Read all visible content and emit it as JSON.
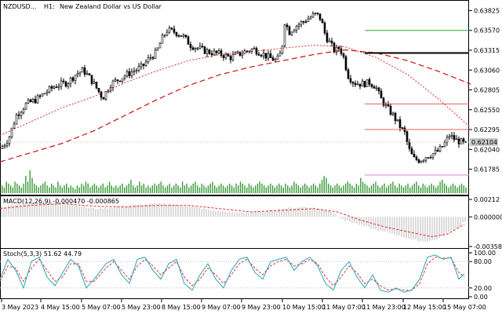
{
  "header": {
    "symbol": "NZDUSD...",
    "timeframe": "H1:",
    "description": "New Zealand Dollar vs US Dollar"
  },
  "current_price_label": "0.62104",
  "macd_label": "MACD(12,26,9) -0.000470 -0.000865",
  "stoch_label": "Stoch(5,3,3) 51.62 44.79",
  "colors": {
    "candle": "#000000",
    "ma_fast": "#e03030",
    "ma_slow": "#d01010",
    "volume": "#3a9a3a",
    "green_level": "#2fa82f",
    "black_level": "#000000",
    "red_level": "#e06060",
    "magenta_level": "#e080e0",
    "macd_hist": "#b8b8b8",
    "macd_signal": "#e03030",
    "stoch_main": "#26a6b8",
    "stoch_signal": "#e03030",
    "price_tag": "#c8c8c8"
  },
  "chart_data": [
    {
      "type": "candlestick",
      "title": "NZDUSD..., H1: New Zealand Dollar vs US Dollar",
      "ylim": [
        0.6168,
        0.6388
      ],
      "y_ticks": [
        "0.63825",
        "0.63570",
        "0.63315",
        "0.63060",
        "0.62805",
        "0.62550",
        "0.62295",
        "0.62040",
        "0.61785"
      ],
      "x_ticks": [
        "3 May 2023",
        "4 May 15:00",
        "5 May 07:00",
        "5 May 23:00",
        "8 May 15:00",
        "9 May 07:00",
        "9 May 23:00",
        "10 May 15:00",
        "11 May 07:00",
        "11 May 23:00",
        "12 May 15:00",
        "15 May 07:00"
      ],
      "path_points": [
        [
          0,
          0.6205
        ],
        [
          10,
          0.6218
        ],
        [
          20,
          0.6248
        ],
        [
          32,
          0.6262
        ],
        [
          45,
          0.6268
        ],
        [
          58,
          0.6278
        ],
        [
          70,
          0.6286
        ],
        [
          85,
          0.629
        ],
        [
          95,
          0.63
        ],
        [
          105,
          0.6306
        ],
        [
          115,
          0.6294
        ],
        [
          125,
          0.6278
        ],
        [
          130,
          0.627
        ],
        [
          140,
          0.6288
        ],
        [
          150,
          0.6294
        ],
        [
          160,
          0.63
        ],
        [
          170,
          0.6305
        ],
        [
          180,
          0.631
        ],
        [
          190,
          0.6322
        ],
        [
          198,
          0.6328
        ],
        [
          205,
          0.6345
        ],
        [
          212,
          0.6357
        ],
        [
          222,
          0.6355
        ],
        [
          232,
          0.635
        ],
        [
          242,
          0.6338
        ],
        [
          252,
          0.6334
        ],
        [
          262,
          0.633
        ],
        [
          272,
          0.6328
        ],
        [
          282,
          0.6326
        ],
        [
          292,
          0.6322
        ],
        [
          302,
          0.6326
        ],
        [
          312,
          0.633
        ],
        [
          322,
          0.6333
        ],
        [
          332,
          0.6328
        ],
        [
          342,
          0.6322
        ],
        [
          352,
          0.6318
        ],
        [
          358,
          0.633
        ],
        [
          362,
          0.6368
        ],
        [
          368,
          0.6355
        ],
        [
          375,
          0.6362
        ],
        [
          385,
          0.6368
        ],
        [
          395,
          0.6374
        ],
        [
          402,
          0.6378
        ],
        [
          408,
          0.6372
        ],
        [
          414,
          0.635
        ],
        [
          420,
          0.634
        ],
        [
          426,
          0.633
        ],
        [
          432,
          0.6335
        ],
        [
          438,
          0.632
        ],
        [
          442,
          0.63
        ],
        [
          450,
          0.629
        ],
        [
          460,
          0.6288
        ],
        [
          470,
          0.629
        ],
        [
          478,
          0.6285
        ],
        [
          484,
          0.627
        ],
        [
          492,
          0.6258
        ],
        [
          500,
          0.6248
        ],
        [
          508,
          0.6235
        ],
        [
          515,
          0.6225
        ],
        [
          520,
          0.6205
        ],
        [
          526,
          0.6192
        ],
        [
          534,
          0.619
        ],
        [
          542,
          0.6195
        ],
        [
          550,
          0.6198
        ],
        [
          558,
          0.6202
        ],
        [
          565,
          0.621
        ],
        [
          572,
          0.6222
        ],
        [
          580,
          0.6216
        ],
        [
          586,
          0.6214
        ],
        [
          592,
          0.621
        ]
      ],
      "ma_fast": [
        [
          0,
          0.6222
        ],
        [
          40,
          0.624
        ],
        [
          80,
          0.6258
        ],
        [
          120,
          0.6272
        ],
        [
          160,
          0.629
        ],
        [
          200,
          0.6305
        ],
        [
          240,
          0.6318
        ],
        [
          280,
          0.6326
        ],
        [
          320,
          0.633
        ],
        [
          360,
          0.6334
        ],
        [
          400,
          0.6338
        ],
        [
          440,
          0.6336
        ],
        [
          480,
          0.6322
        ],
        [
          520,
          0.63
        ],
        [
          560,
          0.6268
        ],
        [
          600,
          0.6232
        ]
      ],
      "ma_slow": [
        [
          0,
          0.6188
        ],
        [
          40,
          0.62
        ],
        [
          80,
          0.6212
        ],
        [
          120,
          0.6228
        ],
        [
          160,
          0.6248
        ],
        [
          200,
          0.6268
        ],
        [
          240,
          0.6286
        ],
        [
          280,
          0.63
        ],
        [
          320,
          0.631
        ],
        [
          360,
          0.6318
        ],
        [
          400,
          0.6326
        ],
        [
          440,
          0.6332
        ],
        [
          480,
          0.6328
        ],
        [
          520,
          0.6318
        ],
        [
          560,
          0.6304
        ],
        [
          600,
          0.6288
        ]
      ],
      "levels": [
        {
          "name": "green",
          "value": 0.6357,
          "x_start": 465,
          "x_end": 598,
          "color": "#2fa82f",
          "width": 1
        },
        {
          "name": "black",
          "value": 0.6328,
          "x_start": 465,
          "x_end": 598,
          "color": "#000000",
          "width": 2
        },
        {
          "name": "red-upper",
          "value": 0.62625,
          "x_start": 465,
          "x_end": 598,
          "color": "#e06060",
          "width": 1
        },
        {
          "name": "red-lower",
          "value": 0.62295,
          "x_start": 465,
          "x_end": 598,
          "color": "#e06060",
          "width": 1
        },
        {
          "name": "magenta",
          "value": 0.6171,
          "x_start": 465,
          "x_end": 598,
          "color": "#e080e0",
          "width": 1
        }
      ]
    },
    {
      "type": "bar",
      "title": "Volume",
      "values": [
        4,
        3,
        6,
        5,
        4,
        3,
        6,
        5,
        4,
        3,
        5,
        9,
        6,
        12,
        8,
        5,
        4,
        3,
        4,
        5,
        6,
        4,
        3,
        5,
        4,
        3,
        6,
        4,
        3,
        4,
        5,
        3,
        4,
        3,
        2,
        4,
        3,
        5,
        4,
        6,
        5,
        3,
        4,
        5,
        4,
        3,
        4,
        5,
        3,
        4,
        6,
        4,
        3,
        4,
        3,
        4,
        5,
        3,
        4,
        5,
        7,
        4,
        3,
        4,
        6,
        4,
        5,
        3,
        4,
        3,
        4,
        5,
        4,
        5,
        6,
        4,
        3,
        4,
        5,
        3,
        4,
        5,
        4,
        3,
        6,
        4,
        5,
        3,
        4,
        5,
        6,
        4,
        3,
        5,
        4,
        3,
        4,
        5,
        6,
        4,
        3,
        4,
        5,
        4,
        3,
        4,
        5,
        4,
        3,
        5,
        4,
        6,
        5,
        4,
        3,
        5,
        4,
        3,
        4,
        5,
        6,
        5,
        4,
        3,
        4,
        5,
        4,
        3,
        4,
        5,
        4,
        3,
        5,
        4,
        3,
        4,
        6,
        5,
        4,
        3,
        4,
        5,
        4,
        3,
        4,
        5,
        4,
        3,
        5,
        7,
        9,
        8,
        5,
        4,
        3,
        4,
        5,
        4,
        3,
        4,
        5,
        6,
        5,
        4,
        3,
        5,
        4,
        8,
        6,
        5,
        4,
        3,
        4,
        5,
        6,
        4,
        3,
        4,
        5,
        3,
        4,
        5,
        6,
        4,
        3,
        5,
        4,
        3,
        4,
        5,
        3,
        4,
        5,
        6,
        4,
        3,
        5,
        4,
        3,
        4,
        5,
        4,
        3,
        4,
        6,
        7,
        5,
        4,
        3,
        4,
        5,
        4,
        3,
        4,
        5,
        4,
        3
      ],
      "ylim": [
        0,
        14
      ]
    },
    {
      "type": "bar",
      "title": "MACD(12,26,9) -0.000470 -0.000865",
      "ylim": [
        -0.003587,
        0.00212
      ],
      "y_ticks": [
        "0.00212",
        "0.000000",
        "-0.003587"
      ],
      "histogram": [
        [
          0,
          0.0012
        ],
        [
          30,
          0.0016
        ],
        [
          60,
          0.0018
        ],
        [
          90,
          0.0015
        ],
        [
          120,
          0.001
        ],
        [
          150,
          0.0012
        ],
        [
          180,
          0.0015
        ],
        [
          210,
          0.0016
        ],
        [
          240,
          0.0013
        ],
        [
          270,
          0.0008
        ],
        [
          300,
          0.0005
        ],
        [
          330,
          0.0006
        ],
        [
          360,
          0.001
        ],
        [
          390,
          0.0012
        ],
        [
          420,
          0.0008
        ],
        [
          440,
          -0.0004
        ],
        [
          460,
          -0.001
        ],
        [
          480,
          -0.0016
        ],
        [
          500,
          -0.002
        ],
        [
          520,
          -0.0026
        ],
        [
          540,
          -0.003
        ],
        [
          555,
          -0.0028
        ],
        [
          570,
          -0.002
        ],
        [
          585,
          -0.0012
        ],
        [
          592,
          -0.0005
        ]
      ],
      "signal": [
        [
          0,
          0.001
        ],
        [
          40,
          0.0014
        ],
        [
          80,
          0.0016
        ],
        [
          120,
          0.0013
        ],
        [
          160,
          0.0012
        ],
        [
          200,
          0.0014
        ],
        [
          240,
          0.0014
        ],
        [
          280,
          0.001
        ],
        [
          320,
          0.0006
        ],
        [
          360,
          0.0008
        ],
        [
          400,
          0.001
        ],
        [
          430,
          0.0006
        ],
        [
          460,
          -0.0004
        ],
        [
          490,
          -0.0012
        ],
        [
          520,
          -0.0018
        ],
        [
          550,
          -0.0024
        ],
        [
          570,
          -0.0021
        ],
        [
          592,
          -0.0009
        ]
      ]
    },
    {
      "type": "line",
      "title": "Stoch(5,3,3) 51.62 44.79",
      "ylim": [
        0,
        100
      ],
      "y_ticks": [
        "100.00",
        "80.00",
        "20.00",
        "0.00"
      ],
      "main": [
        [
          0,
          40
        ],
        [
          10,
          85
        ],
        [
          20,
          60
        ],
        [
          30,
          20
        ],
        [
          40,
          80
        ],
        [
          50,
          90
        ],
        [
          60,
          45
        ],
        [
          70,
          25
        ],
        [
          80,
          55
        ],
        [
          90,
          85
        ],
        [
          100,
          70
        ],
        [
          110,
          20
        ],
        [
          120,
          40
        ],
        [
          135,
          75
        ],
        [
          145,
          85
        ],
        [
          155,
          50
        ],
        [
          165,
          30
        ],
        [
          175,
          85
        ],
        [
          185,
          90
        ],
        [
          195,
          60
        ],
        [
          205,
          40
        ],
        [
          215,
          75
        ],
        [
          225,
          85
        ],
        [
          235,
          30
        ],
        [
          245,
          15
        ],
        [
          255,
          50
        ],
        [
          265,
          75
        ],
        [
          275,
          40
        ],
        [
          285,
          20
        ],
        [
          295,
          60
        ],
        [
          305,
          85
        ],
        [
          315,
          90
        ],
        [
          325,
          55
        ],
        [
          335,
          40
        ],
        [
          345,
          80
        ],
        [
          355,
          85
        ],
        [
          365,
          90
        ],
        [
          375,
          60
        ],
        [
          385,
          80
        ],
        [
          395,
          90
        ],
        [
          405,
          70
        ],
        [
          415,
          30
        ],
        [
          425,
          15
        ],
        [
          435,
          60
        ],
        [
          445,
          80
        ],
        [
          455,
          45
        ],
        [
          465,
          20
        ],
        [
          475,
          50
        ],
        [
          485,
          15
        ],
        [
          495,
          10
        ],
        [
          505,
          20
        ],
        [
          515,
          10
        ],
        [
          525,
          15
        ],
        [
          535,
          40
        ],
        [
          545,
          90
        ],
        [
          555,
          95
        ],
        [
          565,
          85
        ],
        [
          575,
          90
        ],
        [
          585,
          40
        ],
        [
          592,
          52
        ]
      ],
      "signal": [
        [
          0,
          35
        ],
        [
          10,
          70
        ],
        [
          20,
          65
        ],
        [
          30,
          35
        ],
        [
          40,
          65
        ],
        [
          50,
          85
        ],
        [
          60,
          60
        ],
        [
          70,
          35
        ],
        [
          80,
          45
        ],
        [
          90,
          75
        ],
        [
          100,
          75
        ],
        [
          110,
          35
        ],
        [
          120,
          35
        ],
        [
          135,
          65
        ],
        [
          145,
          80
        ],
        [
          155,
          60
        ],
        [
          165,
          40
        ],
        [
          175,
          70
        ],
        [
          185,
          85
        ],
        [
          195,
          70
        ],
        [
          205,
          50
        ],
        [
          215,
          65
        ],
        [
          225,
          80
        ],
        [
          235,
          45
        ],
        [
          245,
          25
        ],
        [
          255,
          40
        ],
        [
          265,
          65
        ],
        [
          275,
          50
        ],
        [
          285,
          30
        ],
        [
          295,
          50
        ],
        [
          305,
          75
        ],
        [
          315,
          85
        ],
        [
          325,
          65
        ],
        [
          335,
          50
        ],
        [
          345,
          70
        ],
        [
          355,
          80
        ],
        [
          365,
          85
        ],
        [
          375,
          70
        ],
        [
          385,
          75
        ],
        [
          395,
          85
        ],
        [
          405,
          75
        ],
        [
          415,
          45
        ],
        [
          425,
          25
        ],
        [
          435,
          45
        ],
        [
          445,
          70
        ],
        [
          455,
          55
        ],
        [
          465,
          30
        ],
        [
          475,
          40
        ],
        [
          485,
          25
        ],
        [
          495,
          15
        ],
        [
          505,
          18
        ],
        [
          515,
          15
        ],
        [
          525,
          15
        ],
        [
          535,
          30
        ],
        [
          545,
          75
        ],
        [
          555,
          90
        ],
        [
          565,
          88
        ],
        [
          575,
          88
        ],
        [
          585,
          55
        ],
        [
          592,
          45
        ]
      ]
    }
  ]
}
